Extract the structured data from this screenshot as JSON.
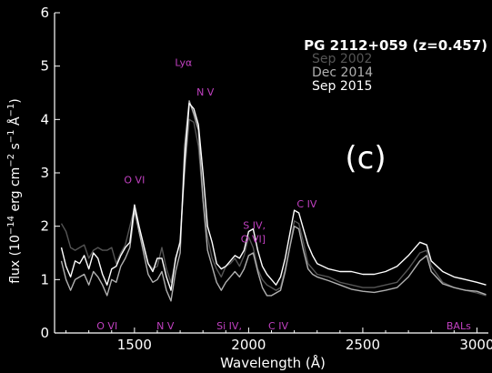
{
  "chart_data": {
    "type": "line",
    "title": "PG 2112+059 (z=0.457)",
    "panel_label": "(c)",
    "xlabel": "Wavelength (Å)",
    "ylabel_parts": [
      "flux (10",
      "−14",
      " erg cm",
      "−2",
      " s",
      "−1",
      " Å",
      "−1",
      ")"
    ],
    "xlim": [
      1150,
      3050
    ],
    "ylim": [
      0,
      6
    ],
    "xticks": [
      1500,
      2000,
      2500,
      3000
    ],
    "yticks": [
      0,
      1,
      2,
      3,
      4,
      5,
      6
    ],
    "grid": false,
    "legend_placement": "top-right",
    "series": [
      {
        "name": "Sep 2002",
        "color": "#555555",
        "x": [
          1180,
          1200,
          1220,
          1240,
          1260,
          1280,
          1300,
          1320,
          1340,
          1360,
          1380,
          1400,
          1420,
          1440,
          1460,
          1480,
          1500,
          1520,
          1540,
          1560,
          1580,
          1600,
          1620,
          1640,
          1660,
          1680,
          1700,
          1720,
          1740,
          1760,
          1780,
          1800,
          1820,
          1840,
          1860,
          1880,
          1900,
          1920,
          1940,
          1960,
          1980,
          2000,
          2020,
          2040,
          2060,
          2080,
          2100,
          2120,
          2140,
          2160,
          2180,
          2200,
          2220,
          2240,
          2260,
          2280,
          2300,
          2350,
          2400,
          2450,
          2500,
          2550,
          2600,
          2650,
          2700,
          2750,
          2780,
          2800,
          2850,
          2900,
          2950,
          3000,
          3040
        ],
        "y": [
          2.05,
          1.9,
          1.6,
          1.55,
          1.6,
          1.65,
          1.4,
          1.55,
          1.6,
          1.55,
          1.55,
          1.6,
          1.3,
          1.5,
          1.65,
          2.0,
          2.35,
          1.9,
          1.6,
          1.3,
          1.2,
          1.25,
          1.6,
          1.2,
          0.95,
          1.35,
          1.75,
          3.0,
          4.0,
          3.95,
          3.5,
          2.5,
          1.8,
          1.4,
          1.2,
          1.05,
          1.25,
          1.3,
          1.4,
          1.25,
          1.45,
          1.8,
          1.6,
          1.2,
          1.0,
          0.9,
          0.85,
          0.8,
          0.85,
          1.2,
          1.6,
          2.1,
          2.05,
          1.7,
          1.3,
          1.2,
          1.1,
          1.05,
          0.95,
          0.9,
          0.85,
          0.85,
          0.9,
          0.95,
          1.2,
          1.5,
          1.55,
          1.25,
          0.95,
          0.85,
          0.8,
          0.75,
          0.7
        ]
      },
      {
        "name": "Dec 2014",
        "color": "#b0b0b0",
        "x": [
          1180,
          1200,
          1220,
          1240,
          1260,
          1280,
          1300,
          1320,
          1340,
          1360,
          1380,
          1400,
          1420,
          1440,
          1460,
          1480,
          1500,
          1520,
          1540,
          1560,
          1580,
          1600,
          1620,
          1640,
          1660,
          1680,
          1700,
          1720,
          1740,
          1760,
          1780,
          1800,
          1820,
          1840,
          1860,
          1880,
          1900,
          1920,
          1940,
          1960,
          1980,
          2000,
          2020,
          2040,
          2060,
          2080,
          2100,
          2120,
          2140,
          2160,
          2180,
          2200,
          2220,
          2240,
          2260,
          2280,
          2300,
          2350,
          2400,
          2450,
          2500,
          2550,
          2600,
          2650,
          2700,
          2750,
          2780,
          2800,
          2850,
          2900,
          2950,
          3000,
          3040
        ],
        "y": [
          1.35,
          1.0,
          0.8,
          1.0,
          1.05,
          1.1,
          0.9,
          1.15,
          1.05,
          0.9,
          0.7,
          1.0,
          0.95,
          1.25,
          1.4,
          1.6,
          2.3,
          1.9,
          1.5,
          1.1,
          0.95,
          1.0,
          1.15,
          0.8,
          0.6,
          1.15,
          1.5,
          3.5,
          4.35,
          4.1,
          3.8,
          2.5,
          1.55,
          1.25,
          0.95,
          0.8,
          0.95,
          1.05,
          1.15,
          1.05,
          1.2,
          1.45,
          1.5,
          1.15,
          0.85,
          0.7,
          0.7,
          0.75,
          0.8,
          1.15,
          1.6,
          2.0,
          1.95,
          1.55,
          1.2,
          1.1,
          1.05,
          0.98,
          0.9,
          0.82,
          0.78,
          0.76,
          0.8,
          0.85,
          1.05,
          1.35,
          1.45,
          1.15,
          0.92,
          0.85,
          0.8,
          0.78,
          0.72
        ]
      },
      {
        "name": "Sep 2015",
        "color": "#ffffff",
        "x": [
          1180,
          1200,
          1220,
          1240,
          1260,
          1280,
          1300,
          1320,
          1340,
          1360,
          1380,
          1400,
          1420,
          1440,
          1460,
          1480,
          1500,
          1520,
          1540,
          1560,
          1580,
          1600,
          1620,
          1640,
          1660,
          1680,
          1700,
          1720,
          1740,
          1760,
          1780,
          1800,
          1820,
          1840,
          1860,
          1880,
          1900,
          1920,
          1940,
          1960,
          1980,
          2000,
          2020,
          2040,
          2060,
          2080,
          2100,
          2120,
          2140,
          2160,
          2180,
          2200,
          2220,
          2240,
          2260,
          2280,
          2300,
          2350,
          2400,
          2450,
          2500,
          2550,
          2600,
          2650,
          2700,
          2750,
          2780,
          2800,
          2850,
          2900,
          2950,
          3000,
          3040
        ],
        "y": [
          1.6,
          1.25,
          1.05,
          1.35,
          1.3,
          1.45,
          1.2,
          1.5,
          1.4,
          1.1,
          0.9,
          1.2,
          1.25,
          1.45,
          1.6,
          1.7,
          2.4,
          2.0,
          1.65,
          1.3,
          1.15,
          1.4,
          1.4,
          1.05,
          0.8,
          1.4,
          1.7,
          3.2,
          4.3,
          4.2,
          3.9,
          3.0,
          2.0,
          1.7,
          1.3,
          1.2,
          1.25,
          1.35,
          1.45,
          1.4,
          1.55,
          1.9,
          1.95,
          1.55,
          1.25,
          1.1,
          1.0,
          0.9,
          1.05,
          1.4,
          1.85,
          2.3,
          2.25,
          1.95,
          1.65,
          1.45,
          1.3,
          1.2,
          1.15,
          1.15,
          1.1,
          1.1,
          1.15,
          1.25,
          1.45,
          1.7,
          1.65,
          1.35,
          1.15,
          1.05,
          1.0,
          0.95,
          0.9
        ]
      }
    ],
    "emission_labels": [
      {
        "text": "Lyα",
        "x": 1715,
        "y": 5.0
      },
      {
        "text": "N V",
        "x": 1810,
        "y": 4.45
      },
      {
        "text": "O VI",
        "x": 1500,
        "y": 2.8
      },
      {
        "text": "S IV,",
        "x": 2025,
        "y": 1.95
      },
      {
        "text": "O VI]",
        "x": 2020,
        "y": 1.7
      },
      {
        "text": "C IV",
        "x": 2255,
        "y": 2.35
      }
    ],
    "absorption_labels": [
      {
        "text": "O VI",
        "x": 1380
      },
      {
        "text": "N V",
        "x": 1635
      },
      {
        "text": "Si IV,",
        "x": 1915
      },
      {
        "text": "C IV",
        "x": 2130
      },
      {
        "text": "BALs",
        "x": 2920
      }
    ],
    "label_color": "#c040c0"
  }
}
